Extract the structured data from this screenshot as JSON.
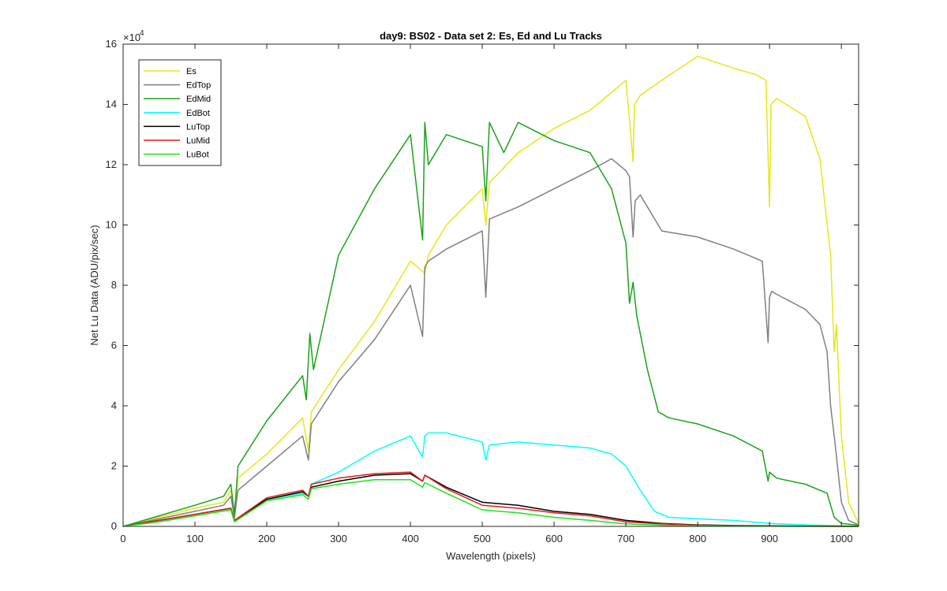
{
  "chart_data": {
    "type": "line",
    "title": "day9: BS02 - Data set 2: Es, Ed and Lu Tracks",
    "xlabel": "Wavelength (pixels)",
    "ylabel": "Net Lu Data (ADU/pix/sec)",
    "xlim": [
      0,
      1024
    ],
    "ylim": [
      0,
      160000
    ],
    "y_exponent_label": "×10",
    "y_exponent_power": "4",
    "x_ticks": [
      "0",
      "100",
      "200",
      "300",
      "400",
      "500",
      "600",
      "700",
      "800",
      "900",
      "1000"
    ],
    "y_ticks": [
      "0",
      "2",
      "4",
      "6",
      "8",
      "10",
      "12",
      "14",
      "16"
    ],
    "x_tick_values": [
      0,
      100,
      200,
      300,
      400,
      500,
      600,
      700,
      800,
      900,
      1000
    ],
    "y_tick_values": [
      0,
      20000,
      40000,
      60000,
      80000,
      100000,
      120000,
      140000,
      160000
    ],
    "grid": false,
    "legend_position": "top-left",
    "series": [
      {
        "name": "Es",
        "color": "#e6e619",
        "x": [
          0,
          50,
          100,
          140,
          150,
          155,
          160,
          200,
          250,
          258,
          262,
          300,
          350,
          400,
          420,
          425,
          450,
          500,
          505,
          510,
          550,
          600,
          650,
          700,
          705,
          710,
          712,
          720,
          750,
          800,
          850,
          880,
          895,
          900,
          902,
          910,
          950,
          970,
          985,
          990,
          993,
          1000,
          1010,
          1024
        ],
        "values": [
          0,
          3000,
          6000,
          8000,
          12000,
          3000,
          16000,
          24000,
          36000,
          25000,
          38000,
          52000,
          68000,
          88000,
          84000,
          90000,
          100000,
          112000,
          100000,
          114000,
          124000,
          132000,
          138000,
          148000,
          135000,
          121000,
          140000,
          143000,
          148000,
          156000,
          152000,
          150000,
          148000,
          106000,
          140000,
          142000,
          136000,
          122000,
          90000,
          58000,
          67000,
          30000,
          8000,
          1000
        ]
      },
      {
        "name": "EdTop",
        "color": "#808080",
        "x": [
          0,
          50,
          100,
          140,
          150,
          155,
          160,
          200,
          250,
          258,
          262,
          300,
          350,
          400,
          417,
          420,
          425,
          450,
          500,
          505,
          510,
          550,
          600,
          650,
          680,
          700,
          705,
          710,
          713,
          720,
          750,
          800,
          850,
          890,
          898,
          900,
          903,
          910,
          950,
          970,
          980,
          985,
          990,
          1000,
          1010,
          1024
        ],
        "values": [
          0,
          2500,
          5000,
          7000,
          10000,
          3000,
          12000,
          20000,
          30000,
          22000,
          34000,
          48000,
          62000,
          80000,
          63000,
          86000,
          88000,
          92000,
          98000,
          76000,
          102000,
          106000,
          112000,
          118000,
          122000,
          118000,
          116000,
          96000,
          108000,
          110000,
          98000,
          96000,
          92000,
          88000,
          61000,
          76000,
          78000,
          77000,
          72000,
          67000,
          58000,
          40000,
          30000,
          8000,
          2000,
          500
        ]
      },
      {
        "name": "EdMid",
        "color": "#19a319",
        "x": [
          0,
          50,
          100,
          140,
          150,
          155,
          160,
          200,
          250,
          255,
          260,
          265,
          300,
          350,
          400,
          417,
          420,
          425,
          450,
          500,
          505,
          510,
          530,
          550,
          600,
          650,
          680,
          700,
          705,
          710,
          715,
          730,
          745,
          760,
          800,
          850,
          890,
          898,
          900,
          905,
          910,
          950,
          980,
          990,
          1000,
          1020,
          1024
        ],
        "values": [
          0,
          3500,
          7000,
          10000,
          14000,
          4000,
          20000,
          35000,
          50000,
          42000,
          64000,
          52000,
          90000,
          112000,
          130000,
          95000,
          134000,
          120000,
          130000,
          126000,
          108000,
          134000,
          124000,
          134000,
          128000,
          124000,
          112000,
          94000,
          74000,
          81000,
          70000,
          52000,
          38000,
          36000,
          34000,
          30000,
          25000,
          15000,
          18000,
          17000,
          16000,
          14000,
          11000,
          3000,
          1000,
          500,
          0
        ]
      },
      {
        "name": "EdBot",
        "color": "#00ffff",
        "x": [
          0,
          50,
          100,
          150,
          155,
          200,
          250,
          258,
          262,
          300,
          350,
          400,
          417,
          420,
          425,
          450,
          500,
          505,
          510,
          550,
          600,
          650,
          680,
          700,
          720,
          740,
          760,
          800,
          850,
          900,
          950,
          1000,
          1024
        ],
        "values": [
          0,
          2000,
          4000,
          6000,
          2000,
          9000,
          11000,
          10000,
          14000,
          18000,
          25000,
          30000,
          23000,
          30000,
          31000,
          31000,
          28000,
          22000,
          27000,
          28000,
          27000,
          26000,
          24000,
          20000,
          12000,
          5000,
          3000,
          2500,
          2000,
          1000,
          500,
          200,
          0
        ]
      },
      {
        "name": "LuTop",
        "color": "#000000",
        "x": [
          0,
          50,
          100,
          150,
          155,
          200,
          250,
          258,
          262,
          300,
          350,
          400,
          417,
          420,
          450,
          500,
          550,
          600,
          650,
          700,
          750,
          800,
          850,
          900,
          950,
          1000,
          1024
        ],
        "values": [
          0,
          2000,
          4000,
          6000,
          2000,
          9000,
          11500,
          10000,
          13000,
          15000,
          17000,
          17500,
          15000,
          17000,
          13000,
          8000,
          7000,
          5000,
          4000,
          2000,
          1000,
          500,
          300,
          200,
          100,
          50,
          0
        ]
      },
      {
        "name": "LuMid",
        "color": "#e61919",
        "x": [
          0,
          50,
          100,
          150,
          155,
          200,
          250,
          258,
          262,
          300,
          350,
          400,
          417,
          420,
          450,
          500,
          550,
          600,
          650,
          700,
          750,
          800,
          850,
          900,
          950,
          1000,
          1024
        ],
        "values": [
          0,
          2000,
          4000,
          6000,
          2000,
          9500,
          12000,
          10000,
          14000,
          16000,
          17500,
          18000,
          15000,
          17000,
          12500,
          7000,
          6000,
          4500,
          3500,
          1500,
          800,
          400,
          200,
          100,
          50,
          0,
          0
        ]
      },
      {
        "name": "LuBot",
        "color": "#19e619",
        "x": [
          0,
          50,
          100,
          150,
          155,
          200,
          250,
          258,
          262,
          300,
          350,
          400,
          417,
          420,
          450,
          500,
          550,
          600,
          650,
          700,
          750,
          800,
          850,
          900,
          950,
          1000,
          1024
        ],
        "values": [
          0,
          1500,
          3500,
          5500,
          1500,
          8500,
          10500,
          9000,
          12500,
          14000,
          15500,
          15500,
          13000,
          14500,
          11000,
          5500,
          4500,
          3000,
          2000,
          800,
          400,
          200,
          100,
          50,
          0,
          0,
          0
        ]
      }
    ]
  }
}
